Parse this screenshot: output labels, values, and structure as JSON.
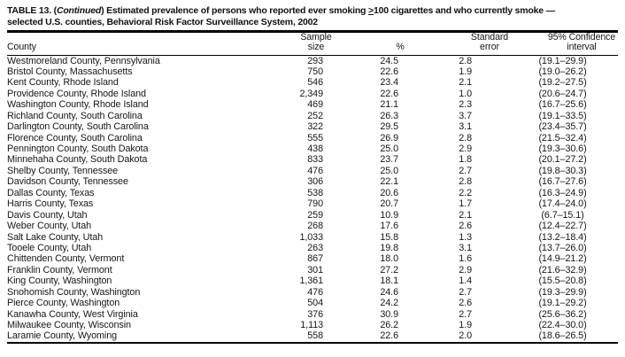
{
  "title": {
    "line1_prefix": "TABLE 13. (",
    "continued": "Continued",
    "line1_mid": ") Estimated prevalence of persons who reported ever smoking ",
    "geq": ">",
    "line1_end": "100 cigarettes and who currently smoke —",
    "line2": "selected U.S. counties, Behavioral Risk Factor Surveillance System, 2002"
  },
  "table": {
    "columns": {
      "county": "County",
      "sample_line1": "Sample",
      "sample_line2": "size",
      "percent": "%",
      "se_line1": "Standard",
      "se_line2": "error",
      "ci_line1": "95% Confidence",
      "ci_line2": "interval"
    },
    "rows": [
      {
        "county": "Westmoreland County, Pennsylvania",
        "sample": "293",
        "pct": "24.5",
        "se": "2.8",
        "ci": "(19.1–29.9)"
      },
      {
        "county": "Bristol County, Massachusetts",
        "sample": "750",
        "pct": "22.6",
        "se": "1.9",
        "ci": "(19.0–26.2)"
      },
      {
        "county": "Kent County, Rhode Island",
        "sample": "546",
        "pct": "23.4",
        "se": "2.1",
        "ci": "(19.2–27.5)"
      },
      {
        "county": "Providence County, Rhode Island",
        "sample": "2,349",
        "pct": "22.6",
        "se": "1.0",
        "ci": "(20.6–24.7)"
      },
      {
        "county": "Washington County, Rhode Island",
        "sample": "469",
        "pct": "21.1",
        "se": "2.3",
        "ci": "(16.7–25.6)"
      },
      {
        "county": "Richland County, South Carolina",
        "sample": "252",
        "pct": "26.3",
        "se": "3.7",
        "ci": "(19.1–33.5)"
      },
      {
        "county": "Darlington County, South Carolina",
        "sample": "322",
        "pct": "29.5",
        "se": "3.1",
        "ci": "(23.4–35.7)"
      },
      {
        "county": "Florence County, South Carolina",
        "sample": "555",
        "pct": "26.9",
        "se": "2.8",
        "ci": "(21.5–32.4)"
      },
      {
        "county": "Pennington County, South Dakota",
        "sample": "438",
        "pct": "25.0",
        "se": "2.9",
        "ci": "(19.3–30.6)"
      },
      {
        "county": "Minnehaha County, South Dakota",
        "sample": "833",
        "pct": "23.7",
        "se": "1.8",
        "ci": "(20.1–27.2)"
      },
      {
        "county": "Shelby County, Tennessee",
        "sample": "476",
        "pct": "25.0",
        "se": "2.7",
        "ci": "(19.8–30.3)"
      },
      {
        "county": "Davidson County, Tennessee",
        "sample": "306",
        "pct": "22.1",
        "se": "2.8",
        "ci": "(16.7–27.6)"
      },
      {
        "county": "Dallas County, Texas",
        "sample": "538",
        "pct": "20.6",
        "se": "2.2",
        "ci": "(16.3–24.9)"
      },
      {
        "county": "Harris County, Texas",
        "sample": "790",
        "pct": "20.7",
        "se": "1.7",
        "ci": "(17.4–24.0)"
      },
      {
        "county": "Davis County, Utah",
        "sample": "259",
        "pct": "10.9",
        "se": "2.1",
        "ci": "(6.7–15.1)"
      },
      {
        "county": "Weber County, Utah",
        "sample": "268",
        "pct": "17.6",
        "se": "2.6",
        "ci": "(12.4–22.7)"
      },
      {
        "county": "Salt Lake County, Utah",
        "sample": "1,033",
        "pct": "15.8",
        "se": "1.3",
        "ci": "(13.2–18.4)"
      },
      {
        "county": "Tooele County, Utah",
        "sample": "263",
        "pct": "19.8",
        "se": "3.1",
        "ci": "(13.7–26.0)"
      },
      {
        "county": "Chittenden County, Vermont",
        "sample": "867",
        "pct": "18.0",
        "se": "1.6",
        "ci": "(14.9–21.2)"
      },
      {
        "county": "Franklin County, Vermont",
        "sample": "301",
        "pct": "27.2",
        "se": "2.9",
        "ci": "(21.6–32.9)"
      },
      {
        "county": "King County, Washington",
        "sample": "1,361",
        "pct": "18.1",
        "se": "1.4",
        "ci": "(15.5–20.8)"
      },
      {
        "county": "Snohomish County, Washington",
        "sample": "476",
        "pct": "24.6",
        "se": "2.7",
        "ci": "(19.3–29.9)"
      },
      {
        "county": "Pierce County, Washington",
        "sample": "504",
        "pct": "24.2",
        "se": "2.6",
        "ci": "(19.1–29.2)"
      },
      {
        "county": "Kanawha County, West Virginia",
        "sample": "376",
        "pct": "30.9",
        "se": "2.7",
        "ci": "(25.6–36.2)"
      },
      {
        "county": "Milwaukee County, Wisconsin",
        "sample": "1,113",
        "pct": "26.2",
        "se": "1.9",
        "ci": "(22.4–30.0)"
      },
      {
        "county": "Laramie County, Wyoming",
        "sample": "558",
        "pct": "22.6",
        "se": "2.0",
        "ci": "(18.6–26.5)"
      }
    ]
  }
}
